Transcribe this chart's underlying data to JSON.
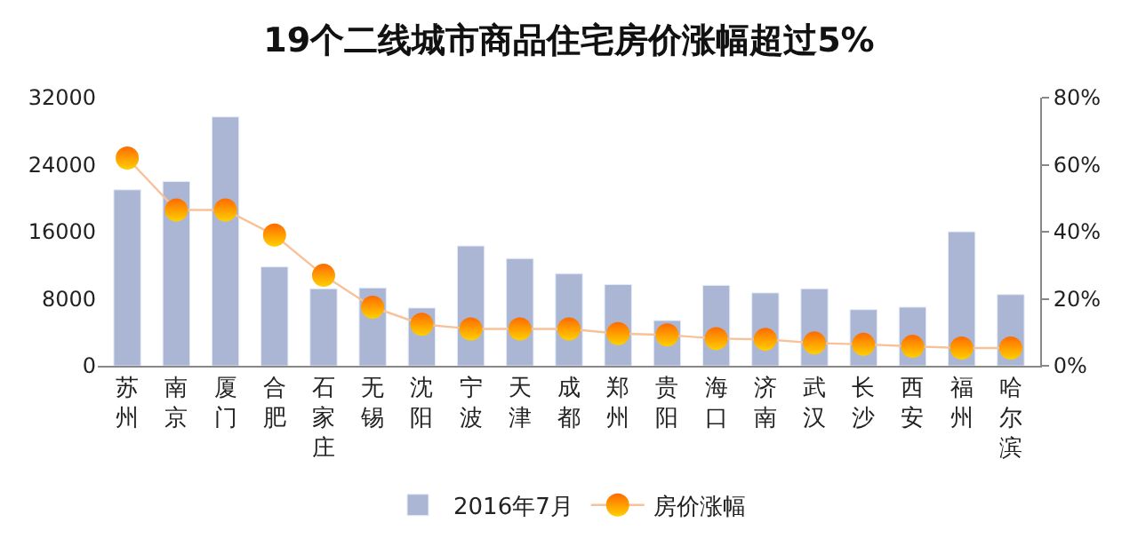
{
  "chart_data": {
    "type": "bar",
    "title": "19个二线城市商品住宅房价涨幅超过5%",
    "categories": [
      "苏州",
      "南京",
      "厦门",
      "合肥",
      "石家庄",
      "无锡",
      "沈阳",
      "宁波",
      "天津",
      "成都",
      "郑州",
      "贵阳",
      "海口",
      "济南",
      "武汉",
      "长沙",
      "西安",
      "福州",
      "哈尔滨"
    ],
    "series": [
      {
        "name": "2016年7月",
        "color": "#aab6d4",
        "values": [
          21000,
          22000,
          29700,
          11800,
          9200,
          9300,
          6900,
          14300,
          12800,
          11000,
          9700,
          5400,
          9600,
          8700,
          9200,
          6700,
          7000,
          16000,
          8500
        ]
      },
      {
        "name": "房价涨幅",
        "type": "line",
        "axis": "y2",
        "color": "#ff6a00",
        "marker": "circle",
        "values": [
          62,
          46.5,
          46.5,
          39,
          27,
          17.5,
          12.4,
          11,
          11,
          11,
          9.6,
          9.2,
          8.1,
          7.9,
          6.8,
          6.4,
          5.8,
          5.3,
          5.3
        ]
      }
    ],
    "ylim": [
      0,
      32000
    ],
    "yticks": [
      0,
      8000,
      16000,
      24000,
      32000
    ],
    "y2lim": [
      0,
      80
    ],
    "y2ticks": [
      {
        "value": 0,
        "label": "0%"
      },
      {
        "value": 20,
        "label": "20%"
      },
      {
        "value": 40,
        "label": "40%"
      },
      {
        "value": 60,
        "label": "60%"
      },
      {
        "value": 80,
        "label": "80%"
      }
    ],
    "legend": "bottom"
  }
}
